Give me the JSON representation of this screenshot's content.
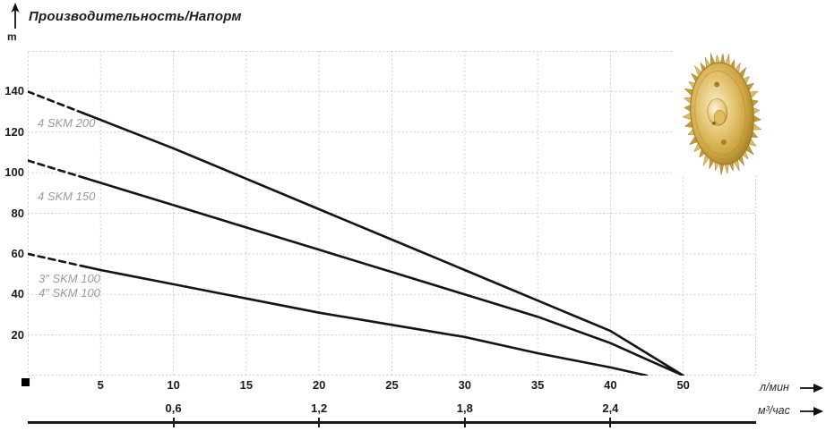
{
  "title": "Производительность/Напорм",
  "y_axis": {
    "unit_label": "m",
    "ticks": [
      20,
      40,
      60,
      80,
      100,
      120,
      140
    ]
  },
  "x_axis_primary": {
    "unit_label": "л/мин",
    "ticks": [
      "5",
      "10",
      "15",
      "20",
      "25",
      "30",
      "35",
      "40",
      "50"
    ]
  },
  "x_axis_secondary": {
    "unit_label": "м³/час",
    "ticks": [
      "0,6",
      "1,2",
      "1,8",
      "2,4"
    ]
  },
  "curve_labels": [
    "4 SKM 200",
    "4 SKM 150",
    "3″ SKM 100",
    "4″ SKM 100"
  ],
  "colors": {
    "curve": "#141414",
    "grid": "#c9c9c9",
    "curve_label": "#9b9b9b",
    "text": "#1b1b1b",
    "impeller_gold": "#d4af37"
  },
  "icons": [
    "up-arrow-icon",
    "right-arrow-icon",
    "impeller-photo"
  ],
  "chart_data": {
    "type": "line",
    "title": "Производительность/Напорм",
    "ylabel": "m",
    "ylim": [
      0,
      160
    ],
    "grid": true,
    "x_axes": [
      {
        "label": "л/мин",
        "ticks": [
          5,
          10,
          15,
          20,
          25,
          30,
          35,
          40,
          50
        ],
        "uniform_tick_spacing": true
      },
      {
        "label": "м³/час",
        "ticks": [
          0.6,
          1.2,
          1.8,
          2.4
        ],
        "aligned_with_lmin": [
          10,
          20,
          30,
          40
        ]
      }
    ],
    "series": [
      {
        "name": "4 SKM 200",
        "dashed_until_x": 3.8,
        "points": [
          [
            0,
            140
          ],
          [
            5,
            126
          ],
          [
            10,
            112
          ],
          [
            15,
            97
          ],
          [
            20,
            82
          ],
          [
            25,
            67
          ],
          [
            30,
            52
          ],
          [
            35,
            37
          ],
          [
            40,
            22
          ],
          [
            45,
            11
          ],
          [
            50,
            0
          ]
        ]
      },
      {
        "name": "4 SKM 150",
        "dashed_until_x": 3.8,
        "points": [
          [
            0,
            106
          ],
          [
            5,
            95
          ],
          [
            10,
            84
          ],
          [
            15,
            73
          ],
          [
            20,
            62
          ],
          [
            25,
            51
          ],
          [
            30,
            40
          ],
          [
            35,
            29
          ],
          [
            40,
            16
          ],
          [
            45,
            8
          ],
          [
            50,
            0
          ]
        ]
      },
      {
        "name": "3″ SKM 100 / 4″ SKM 100",
        "dashed_until_x": 3.8,
        "points": [
          [
            0,
            60
          ],
          [
            5,
            52
          ],
          [
            10,
            45
          ],
          [
            15,
            38
          ],
          [
            20,
            31
          ],
          [
            25,
            25
          ],
          [
            30,
            19
          ],
          [
            35,
            11
          ],
          [
            40,
            4
          ],
          [
            45,
            0
          ]
        ]
      }
    ]
  }
}
